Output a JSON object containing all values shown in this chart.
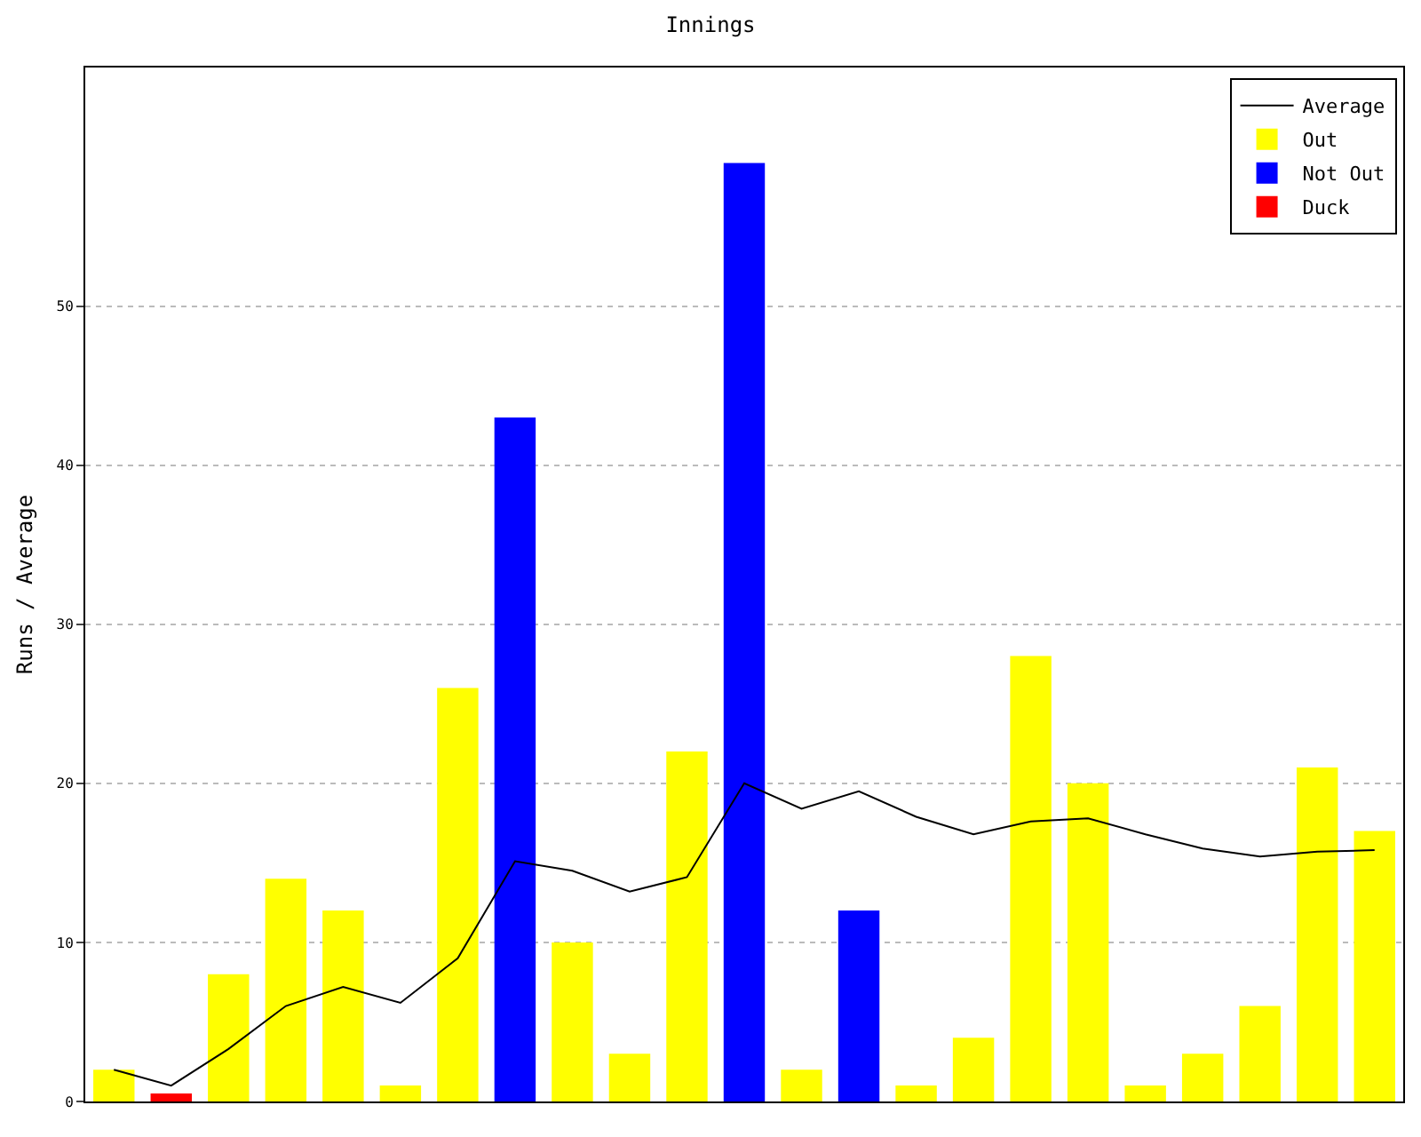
{
  "chart_data": {
    "type": "bar",
    "title": "Innings",
    "ylabel": "Runs / Average",
    "categories": [
      null,
      null,
      null,
      null,
      null,
      null,
      null,
      null,
      null,
      null,
      null,
      null,
      null,
      null,
      null,
      null,
      null,
      null,
      null,
      null,
      null,
      null,
      null
    ],
    "series": [
      {
        "name": "Average",
        "type": "line",
        "color": "#000000",
        "values": [
          2,
          1,
          3.3,
          6,
          7.2,
          6.2,
          9,
          15.1,
          14.5,
          13.2,
          14.1,
          20,
          18.4,
          19.5,
          17.9,
          16.8,
          17.6,
          17.8,
          16.8,
          15.9,
          15.4,
          15.7,
          15.8
        ]
      },
      {
        "name": "Out",
        "color": "#ffff00",
        "values": [
          2,
          null,
          8,
          14,
          12,
          1,
          26,
          null,
          10,
          3,
          22,
          null,
          2,
          null,
          1,
          4,
          28,
          20,
          1,
          3,
          6,
          21,
          17
        ]
      },
      {
        "name": "Not Out",
        "color": "#0000ff",
        "values": [
          null,
          null,
          null,
          null,
          null,
          null,
          null,
          43,
          null,
          null,
          null,
          59,
          null,
          12,
          null,
          null,
          null,
          null,
          null,
          null,
          null,
          null,
          null
        ]
      },
      {
        "name": "Duck",
        "color": "#ff0000",
        "values": [
          null,
          0.5,
          null,
          null,
          null,
          null,
          null,
          null,
          null,
          null,
          null,
          null,
          null,
          null,
          null,
          null,
          null,
          null,
          null,
          null,
          null,
          null,
          null
        ]
      }
    ],
    "ylim": [
      0,
      65
    ],
    "yticks": [
      0,
      10,
      20,
      30,
      40,
      50
    ],
    "grid": "y",
    "legend": "top right",
    "marker": "none",
    "line_style": "solid",
    "tick_labels": "y"
  }
}
